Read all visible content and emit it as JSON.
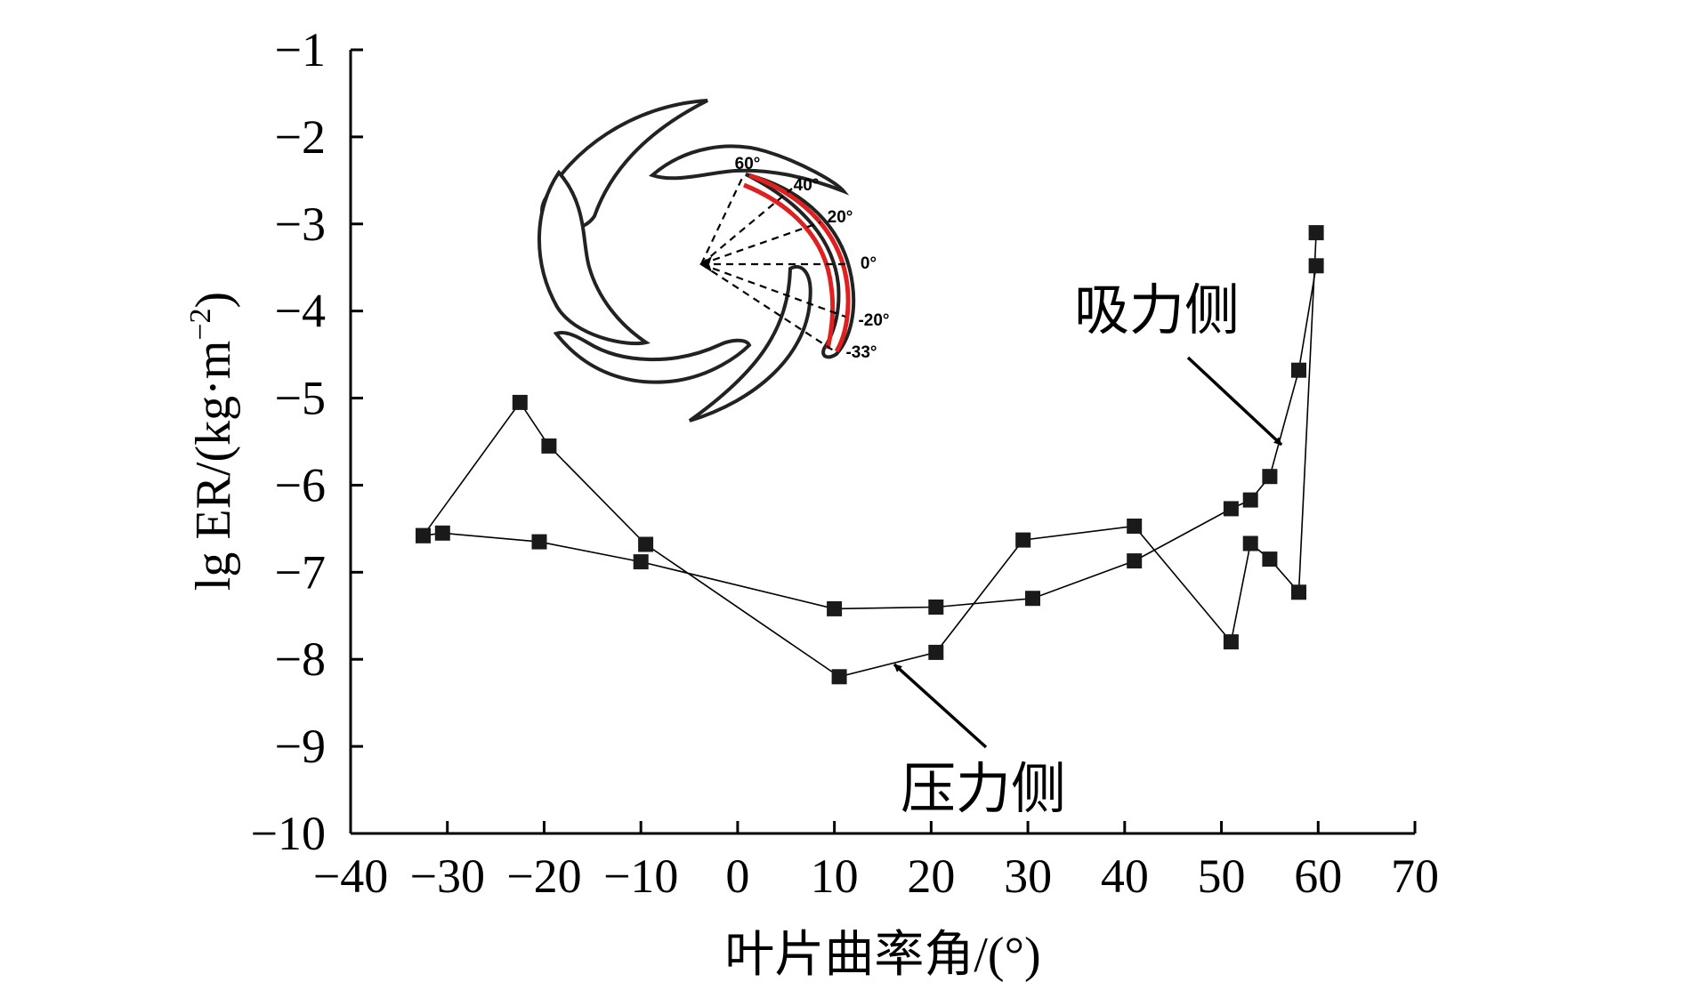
{
  "chart_data": {
    "type": "line",
    "xlabel": "叶片曲率角/(°)",
    "ylabel_main": "lg ER/(kg·m",
    "ylabel_sup": "−2",
    "ylabel_close": ")",
    "xlim": [
      -40,
      70
    ],
    "ylim": [
      -10,
      -1
    ],
    "xticks": [
      -40,
      -30,
      -20,
      -10,
      0,
      10,
      20,
      30,
      40,
      50,
      60,
      70
    ],
    "yticks": [
      -1,
      -2,
      -3,
      -4,
      -5,
      -6,
      -7,
      -8,
      -9,
      -10
    ],
    "xtick_labels": [
      "−40",
      "−30",
      "−20",
      "−10",
      "0",
      "10",
      "20",
      "30",
      "40",
      "50",
      "60",
      "70"
    ],
    "ytick_labels": [
      "−1",
      "−2",
      "−3",
      "−4",
      "−5",
      "−6",
      "−7",
      "−8",
      "−9",
      "−10"
    ],
    "grid": false,
    "series": [
      {
        "id": "pressure",
        "name": "压力侧",
        "points": [
          [
            -32.5,
            -6.58
          ],
          [
            -22.5,
            -5.05
          ],
          [
            -19.5,
            -5.55
          ],
          [
            -9.5,
            -6.68
          ],
          [
            10.5,
            -8.2
          ],
          [
            20.5,
            -7.92
          ],
          [
            29.5,
            -6.63
          ],
          [
            41,
            -6.47
          ],
          [
            51,
            -7.8
          ],
          [
            53,
            -6.67
          ],
          [
            55,
            -6.85
          ],
          [
            58,
            -7.23
          ],
          [
            59.8,
            -3.1
          ]
        ]
      },
      {
        "id": "suction",
        "name": "吸力侧",
        "points": [
          [
            -32.5,
            -6.58
          ],
          [
            -30.5,
            -6.55
          ],
          [
            -20.5,
            -6.65
          ],
          [
            -10,
            -6.88
          ],
          [
            10,
            -7.42
          ],
          [
            20.5,
            -7.4
          ],
          [
            30.5,
            -7.3
          ],
          [
            41,
            -6.87
          ],
          [
            51,
            -6.27
          ],
          [
            53,
            -6.17
          ],
          [
            55,
            -5.9
          ],
          [
            58,
            -4.68
          ],
          [
            59.8,
            -3.48
          ]
        ]
      }
    ],
    "annotations": [
      {
        "id": "suction-side",
        "text": "吸力侧"
      },
      {
        "id": "pressure-side",
        "text": "压力侧"
      }
    ],
    "inset_labels": [
      "60°",
      "40°",
      "20°",
      "0°",
      "-20°",
      "-33°"
    ],
    "colors": {
      "line": "#000000",
      "marker": "#1a1a1a",
      "highlight": "#e02020"
    }
  }
}
